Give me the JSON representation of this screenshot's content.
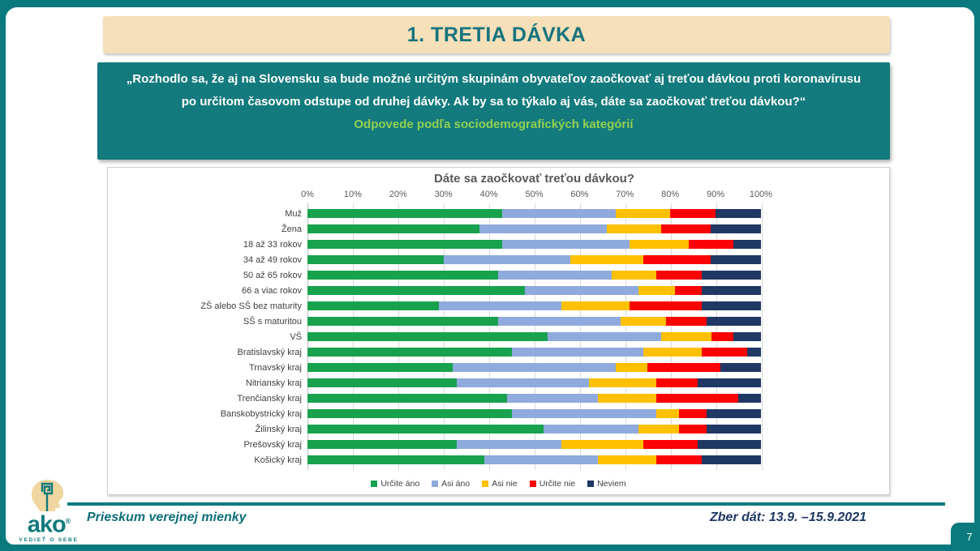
{
  "slide": {
    "title": "1. TRETIA DÁVKA",
    "question": "„Rozhodlo sa, že aj na Slovensku sa bude možné určitým skupinám obyvateľov zaočkovať aj treťou dávkou proti koronavírusu po určitom časovom odstupe od druhej dávky. Ak by sa to týkalo aj vás, dáte sa zaočkovať treťou dávkou?“",
    "question_subtitle": "Odpovede podľa sociodemografických kategórií",
    "footer_left": "Prieskum verejnej mienky",
    "footer_right": "Zber dát: 13.9. –15.9.2021",
    "page_number": "7",
    "logo": {
      "word": "ako",
      "registered_mark": "®",
      "tagline": "VEDIEŤ O SEBE"
    }
  },
  "colors": {
    "frame_teal": "#0b7a7e",
    "question_box_teal": "#137a7d",
    "header_tan": "#f5e0b9",
    "header_title_teal": "#16737e",
    "subtitle_green": "#92d050",
    "footer_left_teal": "#0f6f7a",
    "footer_right_navy": "#1f3864",
    "chart_text_gray": "#595959",
    "category_label_gray": "#404040"
  },
  "chart_data": {
    "type": "bar",
    "stacked": true,
    "orientation": "horizontal",
    "title": "Dáte sa zaočkovať treťou dávkou?",
    "xlim": [
      0,
      100
    ],
    "grid": true,
    "legend_position": "bottom",
    "x_ticks": [
      "0%",
      "10%",
      "20%",
      "30%",
      "40%",
      "50%",
      "60%",
      "70%",
      "80%",
      "90%",
      "100%"
    ],
    "categories": [
      "Muž",
      "Žena",
      "18 až 33 rokov",
      "34 až 49 rokov",
      "50 až 65 rokov",
      "66 a viac rokov",
      "ZŠ alebo SŠ bez maturity",
      "SŠ s maturitou",
      "VŠ",
      "Bratislavský kraj",
      "Trnavský kraj",
      "Nitriansky kraj",
      "Trenčiansky kraj",
      "Banskobystrický kraj",
      "Žilinský kraj",
      "Prešovský kraj",
      "Košický kraj"
    ],
    "series": [
      {
        "name": "Určite áno",
        "color": "#18a24e",
        "values": [
          43,
          38,
          43,
          30,
          42,
          48,
          29,
          42,
          53,
          45,
          32,
          33,
          44,
          45,
          52,
          33,
          39
        ]
      },
      {
        "name": "Asi áno",
        "color": "#8faadc",
        "values": [
          25,
          28,
          28,
          28,
          25,
          25,
          27,
          27,
          25,
          29,
          36,
          29,
          20,
          32,
          21,
          23,
          25
        ]
      },
      {
        "name": "Asi nie",
        "color": "#ffc000",
        "values": [
          12,
          12,
          13,
          16,
          10,
          8,
          15,
          10,
          11,
          13,
          7,
          15,
          13,
          5,
          9,
          18,
          13
        ]
      },
      {
        "name": "Určite nie",
        "color": "#fb0303",
        "values": [
          10,
          11,
          10,
          15,
          10,
          6,
          16,
          9,
          5,
          10,
          16,
          9,
          18,
          6,
          6,
          12,
          10
        ]
      },
      {
        "name": "Neviem",
        "color": "#1f3864",
        "values": [
          10,
          11,
          6,
          11,
          13,
          13,
          13,
          12,
          6,
          3,
          9,
          14,
          5,
          12,
          12,
          14,
          13
        ]
      }
    ]
  }
}
